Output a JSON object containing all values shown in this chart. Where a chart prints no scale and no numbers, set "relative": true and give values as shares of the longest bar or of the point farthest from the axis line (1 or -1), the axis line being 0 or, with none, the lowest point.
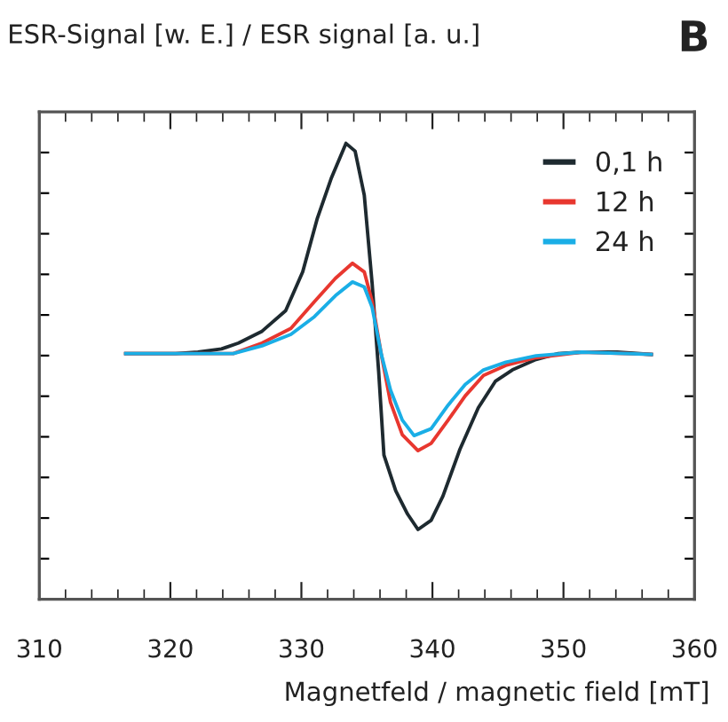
{
  "chart_data": {
    "type": "line",
    "relative": true,
    "ylabel": "ESR-Signal [w. E.] / ESR signal [a. u.]",
    "xlabel": "Magnetfeld / magnetic field [mT]",
    "annotations": [
      "B"
    ],
    "xlim": [
      310,
      360
    ],
    "xticks": [
      310,
      320,
      330,
      340,
      350,
      360
    ],
    "tick_labels": "x",
    "grid": false,
    "legend": "top right",
    "marker": "none",
    "line_style": "solid",
    "series": [
      {
        "name": "0,1 h",
        "color": "#1e2a30",
        "x": [
          316.6,
          320.4,
          322.1,
          323.9,
          325.2,
          327.0,
          328.8,
          330.1,
          331.2,
          332.3,
          333.4,
          334.1,
          334.8,
          335.4,
          335.9,
          336.3,
          337.2,
          338.1,
          338.9,
          339.9,
          340.8,
          342.1,
          343.5,
          344.8,
          346.1,
          347.9,
          349.6,
          351.4,
          354.1,
          356.7
        ],
        "values": [
          0.539,
          0.539,
          0.542,
          0.549,
          0.562,
          0.588,
          0.633,
          0.718,
          0.834,
          0.925,
          1.0,
          0.983,
          0.886,
          0.692,
          0.498,
          0.316,
          0.238,
          0.187,
          0.153,
          0.173,
          0.226,
          0.329,
          0.42,
          0.478,
          0.503,
          0.526,
          0.539,
          0.542,
          0.542,
          0.537
        ]
      },
      {
        "name": "12 h",
        "color": "#e8372f",
        "x": [
          316.6,
          324.8,
          327.0,
          329.2,
          331.0,
          332.6,
          333.9,
          334.8,
          335.4,
          336.1,
          336.8,
          337.7,
          338.9,
          339.9,
          341.2,
          342.5,
          343.9,
          345.6,
          347.9,
          351.4,
          356.7
        ],
        "values": [
          0.539,
          0.539,
          0.562,
          0.594,
          0.653,
          0.704,
          0.737,
          0.718,
          0.653,
          0.537,
          0.432,
          0.361,
          0.326,
          0.342,
          0.393,
          0.446,
          0.491,
          0.513,
          0.53,
          0.542,
          0.537
        ]
      },
      {
        "name": "24 h",
        "color": "#1aaee6",
        "x": [
          316.6,
          324.8,
          327.0,
          329.2,
          331.0,
          332.6,
          333.9,
          334.8,
          335.4,
          336.1,
          336.8,
          337.7,
          338.6,
          339.9,
          341.2,
          342.5,
          343.9,
          345.6,
          347.9,
          351.4,
          356.7
        ],
        "values": [
          0.539,
          0.539,
          0.556,
          0.581,
          0.62,
          0.666,
          0.696,
          0.685,
          0.64,
          0.537,
          0.459,
          0.393,
          0.359,
          0.374,
          0.426,
          0.471,
          0.503,
          0.52,
          0.534,
          0.542,
          0.537
        ]
      }
    ]
  }
}
